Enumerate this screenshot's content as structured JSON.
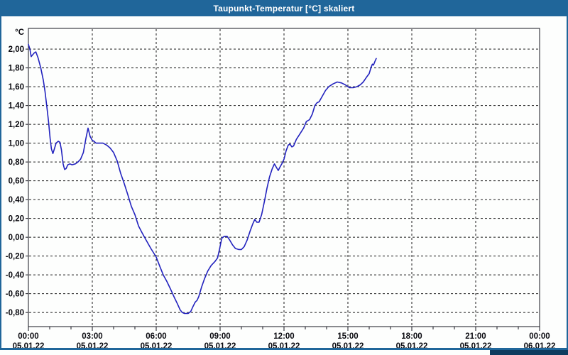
{
  "window": {
    "title": "Taupunkt-Temperatur [°C] skaliert"
  },
  "colors": {
    "titlebar": "#20669A",
    "window_border": "#20669A",
    "background": "#FDFEFD",
    "plot_border": "#15151E",
    "grid": "#1A1A1A",
    "line": "#2222BE",
    "label_text": "#0A0A10"
  },
  "chart_data": {
    "type": "line",
    "title": "Taupunkt-Temperatur [°C] skaliert",
    "y_unit": "°C",
    "xlabel": "",
    "ylabel": "°C",
    "grid": "dashed",
    "legend": "none",
    "xlim_hours": [
      0,
      24
    ],
    "ylim": [
      -0.95,
      2.22
    ],
    "x_minor_tick_hours": 1,
    "y_ticks": [
      {
        "v": 2.0,
        "label": "2,00"
      },
      {
        "v": 1.8,
        "label": "1,80"
      },
      {
        "v": 1.6,
        "label": "1,60"
      },
      {
        "v": 1.4,
        "label": "1,40"
      },
      {
        "v": 1.2,
        "label": "1,20"
      },
      {
        "v": 1.0,
        "label": "1,00"
      },
      {
        "v": 0.8,
        "label": "0,80"
      },
      {
        "v": 0.6,
        "label": "0,60"
      },
      {
        "v": 0.4,
        "label": "0,40"
      },
      {
        "v": 0.2,
        "label": "0,20"
      },
      {
        "v": 0.0,
        "label": "0,00"
      },
      {
        "v": -0.2,
        "label": "-0,20"
      },
      {
        "v": -0.4,
        "label": "-0,40"
      },
      {
        "v": -0.6,
        "label": "-0,60"
      },
      {
        "v": -0.8,
        "label": "-0,80"
      }
    ],
    "x_ticks": [
      {
        "t": 0,
        "time": "00:00",
        "date": "05.01.22"
      },
      {
        "t": 3,
        "time": "03:00",
        "date": "05.01.22"
      },
      {
        "t": 6,
        "time": "06:00",
        "date": "05.01.22"
      },
      {
        "t": 9,
        "time": "09:00",
        "date": "05.01.22"
      },
      {
        "t": 12,
        "time": "12:00",
        "date": "05.01.22"
      },
      {
        "t": 15,
        "time": "15:00",
        "date": "05.01.22"
      },
      {
        "t": 18,
        "time": "18:00",
        "date": "05.01.22"
      },
      {
        "t": 21,
        "time": "21:00",
        "date": "05.01.22"
      },
      {
        "t": 24,
        "time": "00:00",
        "date": "06.01.22"
      }
    ],
    "series": [
      {
        "name": "Taupunkt-Temperatur skaliert",
        "color": "#2222BE",
        "points": [
          [
            0.0,
            2.05
          ],
          [
            0.07,
            2.0
          ],
          [
            0.13,
            1.92
          ],
          [
            0.2,
            1.94
          ],
          [
            0.28,
            1.96
          ],
          [
            0.35,
            1.97
          ],
          [
            0.45,
            1.91
          ],
          [
            0.58,
            1.8
          ],
          [
            0.7,
            1.67
          ],
          [
            0.78,
            1.55
          ],
          [
            0.87,
            1.38
          ],
          [
            0.95,
            1.22
          ],
          [
            1.02,
            1.05
          ],
          [
            1.08,
            0.94
          ],
          [
            1.15,
            0.89
          ],
          [
            1.22,
            0.94
          ],
          [
            1.3,
            1.0
          ],
          [
            1.4,
            1.02
          ],
          [
            1.48,
            1.01
          ],
          [
            1.55,
            0.93
          ],
          [
            1.63,
            0.78
          ],
          [
            1.7,
            0.72
          ],
          [
            1.77,
            0.73
          ],
          [
            1.85,
            0.77
          ],
          [
            1.95,
            0.78
          ],
          [
            2.05,
            0.77
          ],
          [
            2.2,
            0.78
          ],
          [
            2.33,
            0.8
          ],
          [
            2.45,
            0.83
          ],
          [
            2.58,
            0.9
          ],
          [
            2.7,
            1.05
          ],
          [
            2.8,
            1.16
          ],
          [
            2.9,
            1.07
          ],
          [
            3.0,
            1.03
          ],
          [
            3.08,
            1.02
          ],
          [
            3.17,
            1.0
          ],
          [
            3.33,
            1.0
          ],
          [
            3.5,
            1.0
          ],
          [
            3.67,
            0.98
          ],
          [
            3.83,
            0.95
          ],
          [
            4.0,
            0.9
          ],
          [
            4.17,
            0.81
          ],
          [
            4.33,
            0.68
          ],
          [
            4.5,
            0.57
          ],
          [
            4.67,
            0.45
          ],
          [
            4.83,
            0.33
          ],
          [
            5.0,
            0.24
          ],
          [
            5.17,
            0.12
          ],
          [
            5.33,
            0.05
          ],
          [
            5.5,
            -0.02
          ],
          [
            5.75,
            -0.12
          ],
          [
            6.0,
            -0.21
          ],
          [
            6.17,
            -0.31
          ],
          [
            6.33,
            -0.4
          ],
          [
            6.5,
            -0.47
          ],
          [
            6.67,
            -0.55
          ],
          [
            6.83,
            -0.63
          ],
          [
            7.0,
            -0.71
          ],
          [
            7.12,
            -0.77
          ],
          [
            7.22,
            -0.8
          ],
          [
            7.33,
            -0.81
          ],
          [
            7.5,
            -0.81
          ],
          [
            7.62,
            -0.79
          ],
          [
            7.72,
            -0.74
          ],
          [
            7.83,
            -0.69
          ],
          [
            7.92,
            -0.67
          ],
          [
            8.0,
            -0.63
          ],
          [
            8.13,
            -0.53
          ],
          [
            8.27,
            -0.44
          ],
          [
            8.42,
            -0.36
          ],
          [
            8.58,
            -0.3
          ],
          [
            8.75,
            -0.26
          ],
          [
            8.88,
            -0.22
          ],
          [
            8.97,
            -0.13
          ],
          [
            9.08,
            -0.01
          ],
          [
            9.2,
            0.01
          ],
          [
            9.33,
            0.01
          ],
          [
            9.45,
            -0.03
          ],
          [
            9.58,
            -0.08
          ],
          [
            9.72,
            -0.12
          ],
          [
            9.87,
            -0.13
          ],
          [
            10.0,
            -0.13
          ],
          [
            10.13,
            -0.1
          ],
          [
            10.27,
            -0.03
          ],
          [
            10.4,
            0.06
          ],
          [
            10.53,
            0.14
          ],
          [
            10.63,
            0.19
          ],
          [
            10.72,
            0.16
          ],
          [
            10.83,
            0.16
          ],
          [
            10.95,
            0.24
          ],
          [
            11.08,
            0.38
          ],
          [
            11.2,
            0.52
          ],
          [
            11.32,
            0.64
          ],
          [
            11.45,
            0.73
          ],
          [
            11.55,
            0.78
          ],
          [
            11.65,
            0.74
          ],
          [
            11.73,
            0.71
          ],
          [
            11.82,
            0.75
          ],
          [
            11.92,
            0.79
          ],
          [
            12.0,
            0.83
          ],
          [
            12.1,
            0.92
          ],
          [
            12.2,
            0.98
          ],
          [
            12.28,
            0.99
          ],
          [
            12.37,
            0.96
          ],
          [
            12.45,
            0.97
          ],
          [
            12.58,
            1.04
          ],
          [
            12.75,
            1.1
          ],
          [
            12.92,
            1.16
          ],
          [
            13.05,
            1.23
          ],
          [
            13.2,
            1.25
          ],
          [
            13.33,
            1.31
          ],
          [
            13.45,
            1.4
          ],
          [
            13.55,
            1.43
          ],
          [
            13.65,
            1.44
          ],
          [
            13.8,
            1.5
          ],
          [
            13.95,
            1.56
          ],
          [
            14.1,
            1.6
          ],
          [
            14.3,
            1.63
          ],
          [
            14.5,
            1.65
          ],
          [
            14.7,
            1.64
          ],
          [
            14.88,
            1.62
          ],
          [
            15.0,
            1.6
          ],
          [
            15.08,
            1.59
          ],
          [
            15.25,
            1.59
          ],
          [
            15.42,
            1.6
          ],
          [
            15.58,
            1.62
          ],
          [
            15.72,
            1.65
          ],
          [
            15.87,
            1.7
          ],
          [
            16.0,
            1.74
          ],
          [
            16.08,
            1.8
          ],
          [
            16.15,
            1.84
          ],
          [
            16.2,
            1.83
          ],
          [
            16.27,
            1.87
          ],
          [
            16.33,
            1.9
          ]
        ]
      }
    ]
  }
}
